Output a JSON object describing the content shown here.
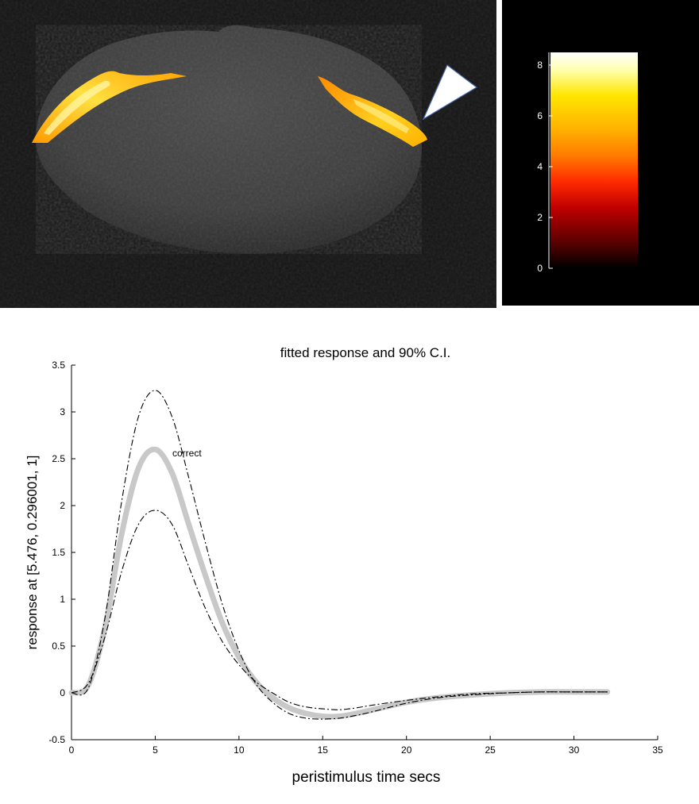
{
  "colorbar": {
    "ticks": [
      "0",
      "2",
      "4",
      "6",
      "8"
    ],
    "range": [
      0,
      8.5
    ],
    "colors": [
      "#000000",
      "#5a0000",
      "#c00000",
      "#ff2a00",
      "#ff7a00",
      "#ffb400",
      "#ffe600",
      "#ffffb0",
      "#ffffff"
    ]
  },
  "brain_image": {
    "background": "#000000",
    "activation_color": "#ff8c00",
    "marker": "white-triangle-pointer"
  },
  "chart_data": {
    "type": "line",
    "title": "fitted response and 90% C.I.",
    "xlabel": "peristimulus time secs",
    "ylabel": "response at [5.476, 0.296001, 1]",
    "xlim": [
      0,
      35
    ],
    "ylim": [
      -0.5,
      3.5
    ],
    "xticks": [
      "0",
      "5",
      "10",
      "15",
      "20",
      "25",
      "30",
      "35"
    ],
    "yticks": [
      "-0.5",
      "0",
      "0.5",
      "1",
      "1.5",
      "2",
      "2.5",
      "3",
      "3.5"
    ],
    "grid": false,
    "annotation": "correct",
    "series": [
      {
        "role": "fitted",
        "color": "#c8c8c8",
        "style": "solid-thick",
        "x": [
          0,
          1,
          2,
          3,
          4,
          5,
          6,
          7,
          8,
          9,
          10,
          11,
          12,
          13,
          14,
          15,
          16,
          17,
          18,
          20,
          22,
          24,
          26,
          28,
          30,
          32
        ],
        "y": [
          0,
          0.08,
          0.7,
          1.7,
          2.4,
          2.6,
          2.35,
          1.8,
          1.25,
          0.75,
          0.38,
          0.12,
          -0.05,
          -0.16,
          -0.22,
          -0.25,
          -0.25,
          -0.22,
          -0.18,
          -0.1,
          -0.05,
          -0.02,
          0,
          0.01,
          0.01,
          0.01
        ]
      },
      {
        "role": "upper-ci",
        "color": "#000000",
        "style": "dash-dot",
        "x": [
          0,
          1,
          2,
          3,
          4,
          5,
          6,
          7,
          8,
          9,
          10,
          11,
          12,
          13,
          14,
          15,
          16,
          17,
          18,
          20,
          22,
          24,
          26,
          28,
          30,
          32
        ],
        "y": [
          0,
          0.05,
          0.8,
          2.05,
          2.95,
          3.23,
          2.95,
          2.3,
          1.6,
          0.95,
          0.45,
          0.1,
          -0.1,
          -0.22,
          -0.27,
          -0.28,
          -0.27,
          -0.24,
          -0.2,
          -0.11,
          -0.05,
          -0.02,
          0,
          0.01,
          0.01,
          0.01
        ]
      },
      {
        "role": "lower-ci",
        "color": "#000000",
        "style": "dash-dot",
        "x": [
          0,
          1,
          2,
          3,
          4,
          5,
          6,
          7,
          8,
          9,
          10,
          11,
          12,
          13,
          14,
          15,
          16,
          17,
          18,
          20,
          22,
          24,
          26,
          28,
          30,
          32
        ],
        "y": [
          0,
          0.1,
          0.6,
          1.3,
          1.8,
          1.95,
          1.8,
          1.35,
          0.9,
          0.55,
          0.3,
          0.12,
          0,
          -0.1,
          -0.15,
          -0.17,
          -0.18,
          -0.16,
          -0.13,
          -0.08,
          -0.04,
          -0.01,
          0,
          0.01,
          0.01,
          0.01
        ]
      }
    ]
  }
}
